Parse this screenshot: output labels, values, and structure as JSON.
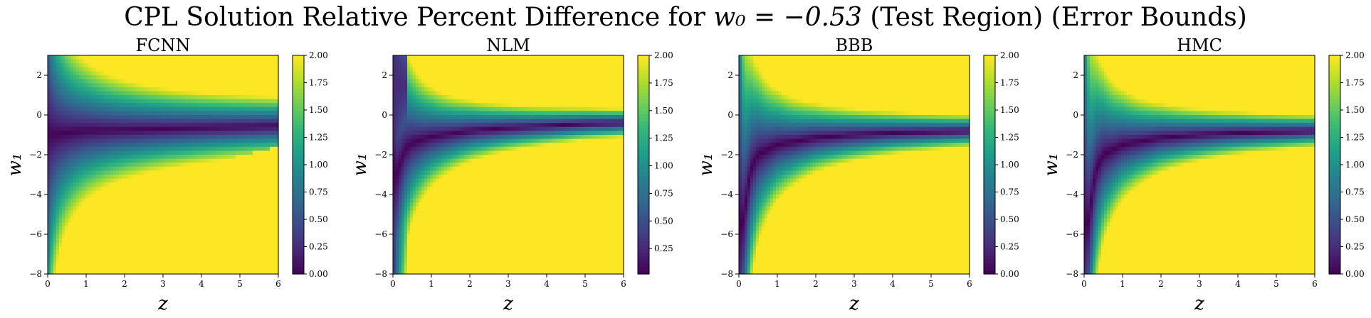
{
  "figure": {
    "suptitle_prefix": "CPL Solution Relative Percent Difference for ",
    "suptitle_math": "w₀ = −0.53",
    "suptitle_suffix": " (Test Region) (Error Bounds)"
  },
  "colormap": "viridis",
  "colormap_stops": [
    "#440154",
    "#482878",
    "#3e4a89",
    "#31688e",
    "#26828e",
    "#1f9e89",
    "#35b779",
    "#6ece58",
    "#b5de2b",
    "#fde725"
  ],
  "chart_data": [
    {
      "type": "heatmap",
      "title": "FCNN",
      "xlabel": "z",
      "ylabel": "w₁",
      "xlim": [
        0,
        6
      ],
      "ylim": [
        -8,
        3
      ],
      "xticks": [
        0,
        1,
        2,
        3,
        4,
        5,
        6
      ],
      "yticks": [
        2,
        0,
        -2,
        -4,
        -6,
        -8
      ],
      "clim": [
        0,
        2
      ],
      "colorbar_ticks": [
        "0.00",
        "0.25",
        "0.50",
        "0.75",
        "1.00",
        "1.25",
        "1.50",
        "1.75",
        "2.00"
      ],
      "colorbar_tick_values": [
        0,
        0.25,
        0.5,
        0.75,
        1.0,
        1.25,
        1.5,
        1.75,
        2.0
      ],
      "valley_curve": {
        "z": [
          0.1,
          0.5,
          1,
          2,
          3,
          4,
          5,
          6
        ],
        "w1": [
          -1.0,
          -0.9,
          -0.8,
          -0.75,
          -0.7,
          -0.65,
          -0.6,
          -0.55
        ]
      },
      "notes": "low-error band along w1≈-0.8; sharp jump to saturation below curve from (2.5,-6) to (6,-1.6)"
    },
    {
      "type": "heatmap",
      "title": "NLM",
      "xlabel": "z",
      "ylabel": "w₁",
      "xlim": [
        0,
        6
      ],
      "ylim": [
        -8,
        3
      ],
      "xticks": [
        0,
        1,
        2,
        3,
        4,
        5,
        6
      ],
      "yticks": [
        2,
        0,
        -2,
        -4,
        -6,
        -8
      ],
      "clim": [
        0.02,
        2
      ],
      "colorbar_ticks": [
        "0.25",
        "0.50",
        "0.75",
        "1.00",
        "1.25",
        "1.50",
        "1.75",
        "2.00"
      ],
      "colorbar_tick_values": [
        0.25,
        0.5,
        0.75,
        1.0,
        1.25,
        1.5,
        1.75,
        2.0
      ],
      "valley_curve": {
        "z": [
          0.1,
          0.3,
          0.5,
          1,
          2,
          3,
          4,
          5,
          6
        ],
        "w1": [
          -3.0,
          -1.8,
          -1.4,
          -1.1,
          -0.8,
          -0.65,
          -0.55,
          -0.45,
          -0.4
        ]
      }
    },
    {
      "type": "heatmap",
      "title": "BBB",
      "xlabel": "z",
      "ylabel": "w₁",
      "xlim": [
        0,
        6
      ],
      "ylim": [
        -8,
        3
      ],
      "xticks": [
        0,
        1,
        2,
        3,
        4,
        5,
        6
      ],
      "yticks": [
        2,
        0,
        -2,
        -4,
        -6,
        -8
      ],
      "clim": [
        0,
        2
      ],
      "colorbar_ticks": [
        "0.00",
        "0.25",
        "0.50",
        "0.75",
        "1.00",
        "1.25",
        "1.50",
        "1.75",
        "2.00"
      ],
      "colorbar_tick_values": [
        0,
        0.25,
        0.5,
        0.75,
        1.0,
        1.25,
        1.5,
        1.75,
        2.0
      ],
      "valley_curve": {
        "z": [
          0.1,
          0.3,
          0.5,
          1,
          2,
          3,
          4,
          5,
          6
        ],
        "w1": [
          -5.5,
          -2.8,
          -2.0,
          -1.5,
          -1.15,
          -1.0,
          -0.9,
          -0.85,
          -0.8
        ]
      }
    },
    {
      "type": "heatmap",
      "title": "HMC",
      "xlabel": "z",
      "ylabel": "w₁",
      "xlim": [
        0,
        6
      ],
      "ylim": [
        -8,
        3
      ],
      "xticks": [
        0,
        1,
        2,
        3,
        4,
        5,
        6
      ],
      "yticks": [
        2,
        0,
        -2,
        -4,
        -6,
        -8
      ],
      "clim": [
        0,
        2
      ],
      "colorbar_ticks": [
        "0.00",
        "0.25",
        "0.50",
        "0.75",
        "1.00",
        "1.25",
        "1.50",
        "1.75",
        "2.00"
      ],
      "colorbar_tick_values": [
        0,
        0.25,
        0.5,
        0.75,
        1.0,
        1.25,
        1.5,
        1.75,
        2.0
      ],
      "valley_curve": {
        "z": [
          0.1,
          0.3,
          0.5,
          1,
          2,
          3,
          4,
          5,
          6
        ],
        "w1": [
          -5.5,
          -2.8,
          -2.0,
          -1.5,
          -1.15,
          -1.0,
          -0.9,
          -0.85,
          -0.8
        ]
      }
    }
  ]
}
